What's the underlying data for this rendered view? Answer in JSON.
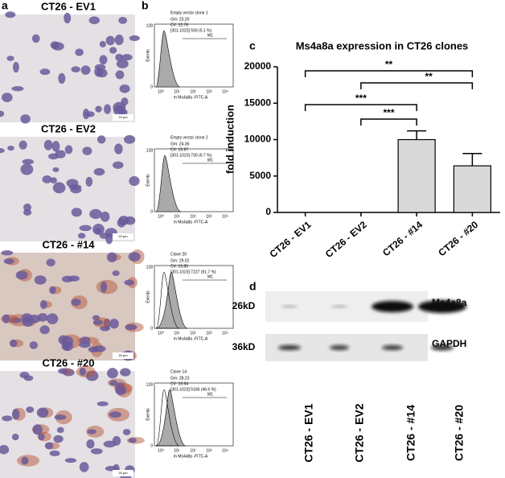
{
  "panel_labels": [
    "a",
    "b",
    "c",
    "d"
  ],
  "micrographs": [
    {
      "label": "CT26 - EV1",
      "scale": "20 µm"
    },
    {
      "label": "CT26 - EV2",
      "scale": "20 µm"
    },
    {
      "label": "CT26 - #14",
      "scale": "20 µm"
    },
    {
      "label": "CT26 - #20",
      "scale": "20 µm"
    }
  ],
  "flow": {
    "x_label": "m Ms4a8a -FITC-A",
    "y_label": "Events",
    "y_ticks": [
      "128",
      "0"
    ],
    "x_ticks": [
      "10⁰",
      "10¹",
      "10²",
      "10³",
      "10⁴"
    ],
    "gate": "M1",
    "histograms": [
      {
        "title": "Empty vector clone 1",
        "stats": [
          "Gm: 23.20",
          "CV: 12.76",
          "[301-1023] 593  (5.1 %)"
        ]
      },
      {
        "title": "Empty vector clone 2",
        "stats": [
          "Gm: 24.36",
          "CV: 15.97",
          "[301-1023] 730  (6.7 %)"
        ]
      },
      {
        "title": "Clone 20",
        "stats": [
          "Gm: 29.02",
          "CV: 15.85",
          "[301-1023] 7227  (61.7 %)"
        ]
      },
      {
        "title": "Clone 14",
        "stats": [
          "Gm: 28.23",
          "CV: 16.64",
          "[301-1023] 5166  (46.6 %)"
        ]
      }
    ]
  },
  "chart_data": {
    "type": "bar",
    "title": "Ms4a8a expression in CT26 clones",
    "y_label": "fold induction",
    "categories": [
      "CT26 - EV1",
      "CT26 - EV2",
      "CT26 - #14",
      "CT26 - #20"
    ],
    "values": [
      0,
      0,
      10000,
      6400
    ],
    "errors": [
      null,
      null,
      1200,
      1700
    ],
    "color": "#d9d9d9",
    "ylim": [
      0,
      20000
    ],
    "yticks": [
      0,
      5000,
      10000,
      15000,
      20000
    ],
    "annotations": [
      "**",
      "**",
      "***",
      "***"
    ]
  },
  "blot": {
    "rows": [
      {
        "size": "26kD",
        "protein": "Ms4a8a"
      },
      {
        "size": "36kD",
        "protein": "GAPDH"
      }
    ],
    "lanes": [
      "CT26 - EV1",
      "CT26 - EV2",
      "CT26 - #14",
      "CT26 - #20"
    ]
  }
}
